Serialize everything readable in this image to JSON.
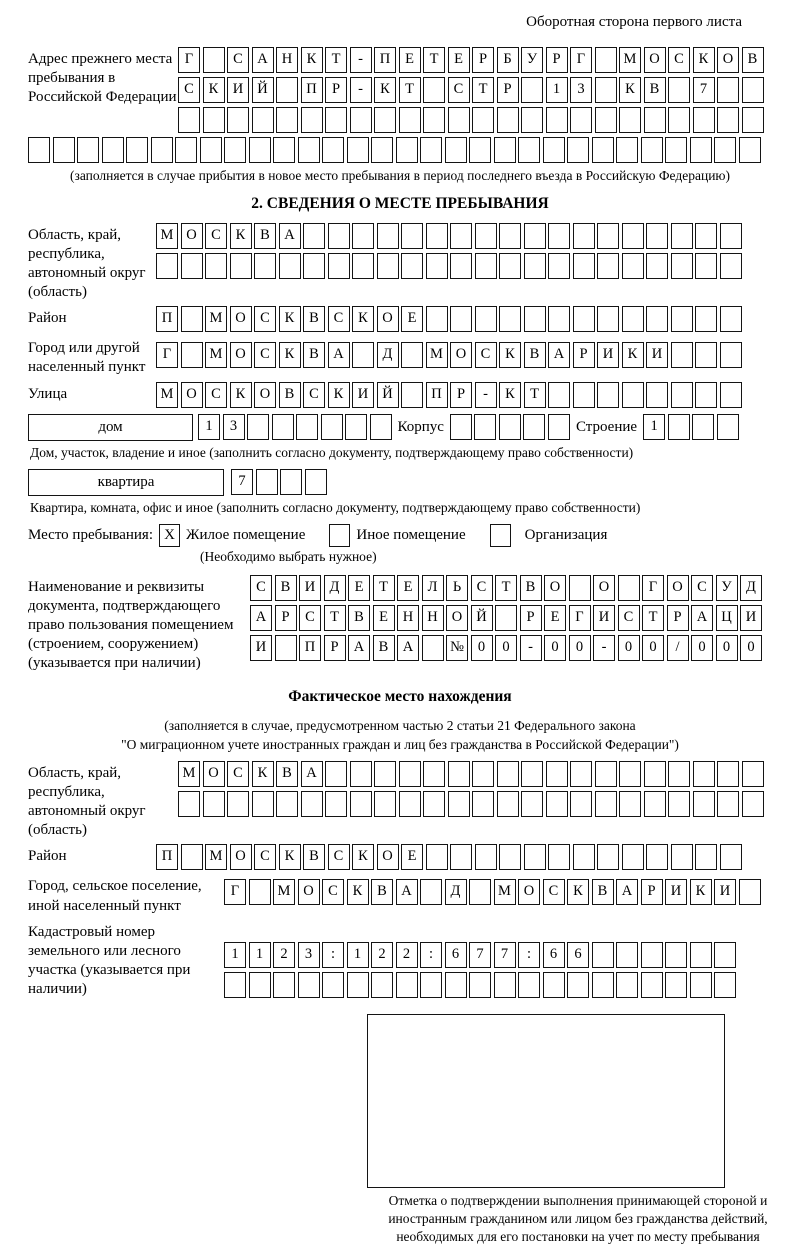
{
  "page": {
    "header_note": "Оборотная сторона первого листа"
  },
  "prev_address": {
    "label": "Адрес прежнего места пребывания в Российской Федерации",
    "r1": "Г САНКТ-ПЕТЕРБУРГ МОСКОВ",
    "r2": "СКИЙ ПР-КТ СТР 13 КВ 7  ",
    "r3": "                        ",
    "r4": "                              ",
    "caption": "(заполняется в случае прибытия в новое место пребывания в период последнего въезда в Российскую Федерацию)"
  },
  "section2": {
    "title": "2. СВЕДЕНИЯ О МЕСТЕ ПРЕБЫВАНИЯ",
    "region": {
      "label": "Область, край, республика, автономный округ (область)",
      "r1": "МОСКВА                  ",
      "r2": "                        "
    },
    "district": {
      "label": "Район",
      "r1": "П МОСКВСКОЕ             "
    },
    "city": {
      "label": "Город или другой населенный пункт",
      "r1": "Г МОСКВА Д МОСКВАРИКИ   "
    },
    "street": {
      "label": "Улица",
      "r1": "МОСКОВСКИЙ ПР-КТ        "
    },
    "house": {
      "box_label": "дом",
      "value": "13      ",
      "korpus_label": "Корпус",
      "korpus_value": "     ",
      "stroenie_label": "Строение",
      "stroenie_value": "1   ",
      "caption": "Дом, участок, владение и иное (заполнить согласно документу, подтверждающему право собственности)"
    },
    "apartment": {
      "box_label": "квартира",
      "value": "7   ",
      "caption": "Квартира, комната, офис и иное (заполнить согласно документу, подтверждающему право собственности)"
    },
    "place_type": {
      "label": "Место пребывания:",
      "option1": "Жилое помещение",
      "option1_mark": "X",
      "option2": "Иное помещение",
      "option2_mark": "",
      "option3": "Организация",
      "option3_mark": "",
      "caption": "(Необходимо выбрать нужное)"
    },
    "document": {
      "label": "Наименование и реквизиты документа, подтверждающего право пользования помещением (строением, сооружением) (указывается при наличии)",
      "r1": "СВИДЕТЕЛЬСТВО О ГОСУД",
      "r2": "АРСТВЕННОЙ РЕГИСТРАЦИ",
      "r3": "И ПРАВА №00-00-00/000"
    }
  },
  "actual_location": {
    "title": "Фактическое место нахождения",
    "caption1": "(заполняется в случае, предусмотренном частью 2 статьи 21 Федерального закона",
    "caption2": "\"О миграционном учете иностранных граждан и лиц без гражданства в Российской Федерации\")",
    "region": {
      "label": "Область, край, республика, автономный округ (область)",
      "r1": "МОСКВА                  ",
      "r2": "                        "
    },
    "district": {
      "label": "Район",
      "r1": "П МОСКВСКОЕ             "
    },
    "city": {
      "label": "Город, сельское поселение, иной населенный пункт",
      "r1": "Г МОСКВА Д МОСКВАРИКИ "
    },
    "cadastral": {
      "label": "Кадастровый номер земельного или лесного участка (указывается при наличии)",
      "r1": "1123:122:677:66      ",
      "r2": "                     "
    },
    "stamp_caption": "Отметка о подтверждении выполнения принимающей стороной и иностранным гражданином или лицом без гражданства действий, необходимых для его постановки на учет по месту пребывания"
  }
}
